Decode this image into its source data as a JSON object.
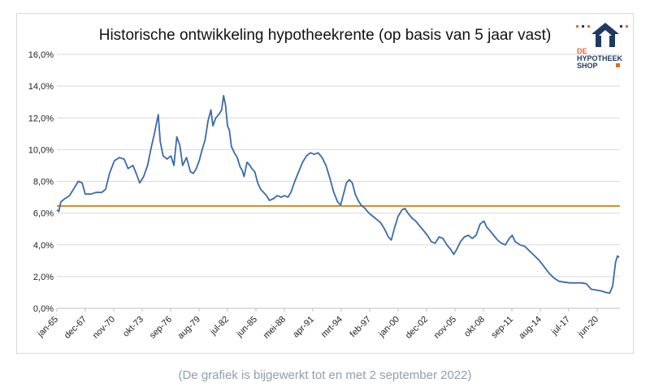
{
  "caption": "(De grafiek is bijgewerkt tot en met 2 september 2022)",
  "logo": {
    "line1": "DE",
    "line2": "HYPOTHEEK",
    "line3": "SHOP",
    "colors": {
      "navy": "#1f3a5f",
      "orange": "#e06a2c"
    }
  },
  "colors": {
    "series": "#3a6aa8",
    "reference": "#d4891c",
    "grid": "#d9d9d9"
  },
  "chart_data": {
    "type": "line",
    "title": "Historische ontwikkeling hypotheekrente (op basis van 5 jaar vast)",
    "xlabel": "",
    "ylabel": "",
    "ylim": [
      0,
      16
    ],
    "yticks": [
      "0,0%",
      "2,0%",
      "4,0%",
      "6,0%",
      "8,0%",
      "10,0%",
      "12,0%",
      "14,0%",
      "16,0%"
    ],
    "xticks": [
      "jan-65",
      "dec-67",
      "nov-70",
      "okt-73",
      "sep-76",
      "aug-79",
      "jul-82",
      "jun-85",
      "mei-88",
      "apr-91",
      "mrt-94",
      "feb-97",
      "jan-00",
      "dec-02",
      "nov-05",
      "okt-08",
      "sep-11",
      "aug-14",
      "jul-17",
      "jun-20"
    ],
    "grid": true,
    "legend": "none",
    "reference_line": {
      "y": 6.45
    },
    "series": [
      {
        "values": [
          [
            1965.0,
            6.2
          ],
          [
            1965.2,
            6.1
          ],
          [
            1965.4,
            6.7
          ],
          [
            1965.8,
            6.9
          ],
          [
            1966.3,
            7.1
          ],
          [
            1966.8,
            7.6
          ],
          [
            1967.2,
            8.0
          ],
          [
            1967.6,
            7.9
          ],
          [
            1967.9,
            7.2
          ],
          [
            1968.5,
            7.2
          ],
          [
            1969.0,
            7.3
          ],
          [
            1969.6,
            7.3
          ],
          [
            1970.0,
            7.5
          ],
          [
            1970.4,
            8.5
          ],
          [
            1970.9,
            9.3
          ],
          [
            1971.4,
            9.5
          ],
          [
            1971.9,
            9.4
          ],
          [
            1972.3,
            8.8
          ],
          [
            1972.8,
            9.0
          ],
          [
            1973.2,
            8.4
          ],
          [
            1973.5,
            7.9
          ],
          [
            1973.9,
            8.3
          ],
          [
            1974.3,
            9.0
          ],
          [
            1974.7,
            10.2
          ],
          [
            1975.0,
            11.0
          ],
          [
            1975.2,
            11.6
          ],
          [
            1975.4,
            12.2
          ],
          [
            1975.6,
            10.5
          ],
          [
            1975.9,
            9.6
          ],
          [
            1976.3,
            9.4
          ],
          [
            1976.7,
            9.6
          ],
          [
            1977.0,
            9.0
          ],
          [
            1977.3,
            10.8
          ],
          [
            1977.6,
            10.3
          ],
          [
            1977.9,
            9.0
          ],
          [
            1978.3,
            9.5
          ],
          [
            1978.7,
            8.6
          ],
          [
            1979.0,
            8.5
          ],
          [
            1979.3,
            8.8
          ],
          [
            1979.6,
            9.3
          ],
          [
            1979.9,
            10.0
          ],
          [
            1980.2,
            10.6
          ],
          [
            1980.5,
            11.8
          ],
          [
            1980.8,
            12.5
          ],
          [
            1981.0,
            11.5
          ],
          [
            1981.3,
            12.0
          ],
          [
            1981.6,
            12.2
          ],
          [
            1981.9,
            12.5
          ],
          [
            1982.1,
            13.4
          ],
          [
            1982.3,
            12.8
          ],
          [
            1982.5,
            11.5
          ],
          [
            1982.7,
            11.2
          ],
          [
            1982.9,
            10.2
          ],
          [
            1983.2,
            9.8
          ],
          [
            1983.5,
            9.5
          ],
          [
            1983.8,
            8.9
          ],
          [
            1984.0,
            8.7
          ],
          [
            1984.2,
            8.3
          ],
          [
            1984.5,
            9.2
          ],
          [
            1984.8,
            9.0
          ],
          [
            1985.0,
            8.8
          ],
          [
            1985.3,
            8.6
          ],
          [
            1985.6,
            7.9
          ],
          [
            1985.9,
            7.5
          ],
          [
            1986.2,
            7.3
          ],
          [
            1986.5,
            7.1
          ],
          [
            1986.8,
            6.8
          ],
          [
            1987.2,
            6.9
          ],
          [
            1987.6,
            7.1
          ],
          [
            1988.0,
            7.0
          ],
          [
            1988.3,
            7.1
          ],
          [
            1988.7,
            7.0
          ],
          [
            1989.0,
            7.3
          ],
          [
            1989.4,
            8.0
          ],
          [
            1989.8,
            8.6
          ],
          [
            1990.2,
            9.2
          ],
          [
            1990.6,
            9.6
          ],
          [
            1991.0,
            9.8
          ],
          [
            1991.4,
            9.7
          ],
          [
            1991.8,
            9.8
          ],
          [
            1992.2,
            9.5
          ],
          [
            1992.6,
            9.0
          ],
          [
            1993.0,
            8.2
          ],
          [
            1993.4,
            7.3
          ],
          [
            1993.8,
            6.7
          ],
          [
            1994.1,
            6.5
          ],
          [
            1994.4,
            7.2
          ],
          [
            1994.7,
            7.9
          ],
          [
            1995.0,
            8.1
          ],
          [
            1995.3,
            7.9
          ],
          [
            1995.6,
            7.2
          ],
          [
            1995.9,
            6.8
          ],
          [
            1996.2,
            6.5
          ],
          [
            1996.6,
            6.3
          ],
          [
            1997.0,
            6.0
          ],
          [
            1997.4,
            5.8
          ],
          [
            1997.8,
            5.6
          ],
          [
            1998.2,
            5.4
          ],
          [
            1998.6,
            5.0
          ],
          [
            1999.0,
            4.5
          ],
          [
            1999.3,
            4.3
          ],
          [
            1999.6,
            5.0
          ],
          [
            2000.0,
            5.8
          ],
          [
            2000.4,
            6.2
          ],
          [
            2000.7,
            6.3
          ],
          [
            2001.0,
            6.0
          ],
          [
            2001.4,
            5.7
          ],
          [
            2001.8,
            5.5
          ],
          [
            2002.2,
            5.2
          ],
          [
            2002.6,
            4.9
          ],
          [
            2003.0,
            4.6
          ],
          [
            2003.4,
            4.2
          ],
          [
            2003.8,
            4.1
          ],
          [
            2004.2,
            4.5
          ],
          [
            2004.6,
            4.4
          ],
          [
            2005.0,
            4.0
          ],
          [
            2005.4,
            3.7
          ],
          [
            2005.7,
            3.4
          ],
          [
            2006.0,
            3.7
          ],
          [
            2006.4,
            4.2
          ],
          [
            2006.8,
            4.5
          ],
          [
            2007.2,
            4.6
          ],
          [
            2007.6,
            4.4
          ],
          [
            2008.0,
            4.6
          ],
          [
            2008.4,
            5.3
          ],
          [
            2008.8,
            5.5
          ],
          [
            2009.1,
            5.1
          ],
          [
            2009.4,
            4.9
          ],
          [
            2009.8,
            4.6
          ],
          [
            2010.2,
            4.3
          ],
          [
            2010.6,
            4.1
          ],
          [
            2011.0,
            4.0
          ],
          [
            2011.4,
            4.4
          ],
          [
            2011.7,
            4.6
          ],
          [
            2012.0,
            4.2
          ],
          [
            2012.5,
            4.0
          ],
          [
            2013.0,
            3.9
          ],
          [
            2013.5,
            3.6
          ],
          [
            2014.0,
            3.3
          ],
          [
            2014.5,
            3.0
          ],
          [
            2015.0,
            2.6
          ],
          [
            2015.5,
            2.2
          ],
          [
            2016.0,
            1.9
          ],
          [
            2016.5,
            1.7
          ],
          [
            2017.0,
            1.65
          ],
          [
            2017.6,
            1.6
          ],
          [
            2018.2,
            1.6
          ],
          [
            2018.8,
            1.6
          ],
          [
            2019.3,
            1.55
          ],
          [
            2019.8,
            1.2
          ],
          [
            2020.3,
            1.15
          ],
          [
            2020.8,
            1.1
          ],
          [
            2021.3,
            1.0
          ],
          [
            2021.7,
            0.95
          ],
          [
            2022.0,
            1.4
          ],
          [
            2022.3,
            2.9
          ],
          [
            2022.5,
            3.3
          ],
          [
            2022.67,
            3.2
          ]
        ]
      }
    ]
  }
}
